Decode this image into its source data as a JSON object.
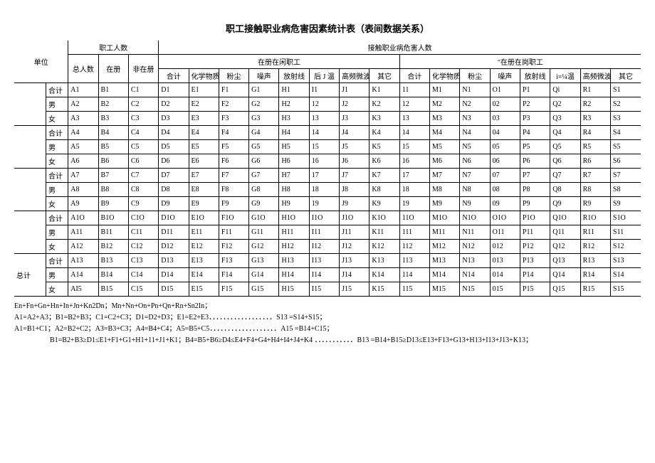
{
  "title": "职工接触职业病危害因素统计表（表间数据关系）",
  "headers": {
    "unit": "单位",
    "emp_count": "职工人数",
    "exposed_count": "接触职业病危害人数",
    "total_people": "总人数",
    "registered": "在册",
    "unregistered": "非在册",
    "reg_idle": "在册在闲职工",
    "reg_onduty": "\"在册在岗职工",
    "sub_total": "合计",
    "chem": "化学物质",
    "dust": "粉尘",
    "noise": "噪声",
    "radiation": "放射线",
    "hotJ": "后 J 温",
    "hf_micro": "高频微波",
    "other": "其它",
    "i_temp": "i=¼温",
    "hf_micro2": "高频微波"
  },
  "row_labels": {
    "total": "合计",
    "male": "男",
    "female": "女",
    "grand": "总计"
  },
  "notes": [
    "En+Fn+Gn+Hn+In+Jn+Kn2Dn；Mn+Nn+On+Pn+Qn+Rn+Sn2In；",
    "A1=A2+A3；B1=B2+B3；C1=C2+C3；D1=D2+D3；E1=E2+E3．．．．．．．．．．．．．．．．．．S13 =S14+S15；",
    "A1=B1+C1；A2=B2+C2；A3=B3+C3；A4=B4+C4；A5=B5+C5．．．．．．．．．．．．．．．．．．．A15 =B14+C15；",
    "B1=B2+B3≥D1≤E1+F1+G1+H1+11+J1+K1；B4=B5+B6≥D4≤E4+F4+G4+H4+I4+J4+K4 ．．．．．．．．．．．B13 =B14+B15≥D13≤E13+F13+G13+H13+I13+J13+K13；"
  ],
  "rows": [
    {
      "l": "合计",
      "c": [
        "A1",
        "B1",
        "C1",
        "D1",
        "E1",
        "F1",
        "G1",
        "H1",
        "I1",
        "J1",
        "K1",
        "11",
        "M1",
        "N1",
        "O1",
        "P1",
        "Qi",
        "R1",
        "S1"
      ]
    },
    {
      "l": "男",
      "c": [
        "A2",
        "B2",
        "C2",
        "D2",
        "E2",
        "F2",
        "G2",
        "H2",
        "12",
        "J2",
        "K2",
        "12",
        "M2",
        "N2",
        "02",
        "P2",
        "Q2",
        "R2",
        "S2"
      ]
    },
    {
      "l": "女",
      "c": [
        "A3",
        "B3",
        "C3",
        "D3",
        "E3",
        "F3",
        "G3",
        "H3",
        "13",
        "J3",
        "K3",
        "13",
        "M3",
        "N3",
        "03",
        "P3",
        "Q3",
        "R3",
        "S3"
      ]
    },
    {
      "l": "合计",
      "c": [
        "A4",
        "B4",
        "C4",
        "D4",
        "E4",
        "F4",
        "G4",
        "H4",
        "14",
        "J4",
        "K4",
        "14",
        "M4",
        "N4",
        "04",
        "P4",
        "Q4",
        "R4",
        "S4"
      ]
    },
    {
      "l": "男",
      "c": [
        "A5",
        "B5",
        "C5",
        "D5",
        "E5",
        "F5",
        "G5",
        "H5",
        "15",
        "J5",
        "K5",
        "15",
        "M5",
        "N5",
        "05",
        "P5",
        "Q5",
        "R5",
        "S5"
      ]
    },
    {
      "l": "女",
      "c": [
        "A6",
        "B6",
        "C6",
        "D6",
        "E6",
        "F6",
        "G6",
        "H6",
        "16",
        "J6",
        "K6",
        "16",
        "M6",
        "N6",
        "06",
        "P6",
        "Q6",
        "R6",
        "S6"
      ]
    },
    {
      "l": "合计",
      "c": [
        "A7",
        "B7",
        "C7",
        "D7",
        "E7",
        "F7",
        "G7",
        "H7",
        "17",
        "J7",
        "K7",
        "17",
        "M7",
        "N7",
        "07",
        "P7",
        "Q7",
        "R7",
        "S7"
      ]
    },
    {
      "l": "男",
      "c": [
        "A8",
        "B8",
        "C8",
        "D8",
        "E8",
        "F8",
        "G8",
        "H8",
        "18",
        "J8",
        "K8",
        "18",
        "M8",
        "N8",
        "08",
        "P8",
        "Q8",
        "R8",
        "S8"
      ]
    },
    {
      "l": "女",
      "c": [
        "A9",
        "B9",
        "C9",
        "D9",
        "E9",
        "F9",
        "G9",
        "H9",
        "19",
        "J9",
        "K9",
        "19",
        "M9",
        "N9",
        "09",
        "P9",
        "Q9",
        "R9",
        "S9"
      ]
    },
    {
      "l": "合计",
      "c": [
        "A1O",
        "B1O",
        "C1O",
        "D1O",
        "E1O",
        "F1O",
        "G1O",
        "H1O",
        "I1O",
        "J1O",
        "K1O",
        "11O",
        "M1O",
        "N1O",
        "O1O",
        "P1O",
        "Q1O",
        "R1O",
        "S1O"
      ]
    },
    {
      "l": "男",
      "c": [
        "A11",
        "B11",
        "C11",
        "D11",
        "E11",
        "F11",
        "G11",
        "H11",
        "I11",
        "J11",
        "K11",
        "111",
        "M11",
        "N11",
        "O11",
        "P11",
        "Q11",
        "R11",
        "S11"
      ]
    },
    {
      "l": "女",
      "c": [
        "A12",
        "B12",
        "C12",
        "D12",
        "E12",
        "F12",
        "G12",
        "H12",
        "I12",
        "J12",
        "K12",
        "112",
        "M12",
        "N12",
        "012",
        "P12",
        "Q12",
        "R12",
        "S12"
      ]
    },
    {
      "l": "合计",
      "c": [
        "A13",
        "B13",
        "C13",
        "D13",
        "E13",
        "F13",
        "G13",
        "H13",
        "I13",
        "J13",
        "K13",
        "113",
        "M13",
        "N13",
        "013",
        "P13",
        "Q13",
        "R13",
        "S13"
      ]
    },
    {
      "l": "男",
      "c": [
        "A14",
        "B14",
        "C14",
        "D14",
        "E14",
        "F14",
        "G14",
        "H14",
        "I14",
        "J14",
        "K14",
        "114",
        "M14",
        "N14",
        "014",
        "P14",
        "Q14",
        "R14",
        "S14"
      ]
    },
    {
      "l": "女",
      "c": [
        "AI5",
        "B15",
        "C15",
        "D15",
        "E15",
        "F15",
        "G15",
        "H15",
        "I15",
        "J15",
        "K15",
        "115",
        "M15",
        "N15",
        "015",
        "P15",
        "Q15",
        "R15",
        "S15"
      ]
    }
  ]
}
